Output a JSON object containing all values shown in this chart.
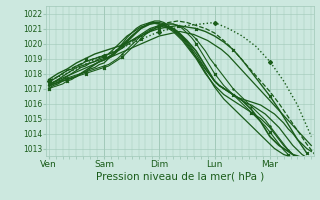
{
  "bg_color": "#cce8df",
  "grid_color": "#a0c8b8",
  "line_color": "#1a5c1a",
  "xlabel": "Pression niveau de la mer( hPa )",
  "xlabel_fontsize": 7.5,
  "ytick_labels": [
    1013,
    1014,
    1015,
    1016,
    1017,
    1018,
    1019,
    1020,
    1021,
    1022
  ],
  "ylim": [
    1012.5,
    1022.5
  ],
  "xtick_labels": [
    "Ven",
    "Sam",
    "Dim",
    "Lun",
    "Mar"
  ],
  "xtick_positions": [
    0,
    24,
    48,
    72,
    96
  ],
  "xlim": [
    -1,
    115
  ],
  "series": [
    {
      "x": [
        0,
        1,
        2,
        3,
        4,
        5,
        6,
        7,
        8,
        9,
        10,
        11,
        12,
        13,
        14,
        15,
        16,
        17,
        18,
        19,
        20,
        21,
        22,
        23,
        24,
        26,
        28,
        30,
        32,
        34,
        36,
        38,
        40,
        42,
        44,
        46,
        48,
        50,
        52,
        54,
        56,
        58,
        60,
        62,
        64,
        66,
        68,
        70,
        72,
        74,
        76,
        78,
        80,
        82,
        84,
        86,
        88,
        90,
        92,
        94,
        96,
        98,
        100,
        102,
        104,
        106,
        108,
        110,
        112,
        114
      ],
      "y": [
        1017.2,
        1017.25,
        1017.3,
        1017.35,
        1017.4,
        1017.45,
        1017.5,
        1017.55,
        1017.6,
        1017.65,
        1017.7,
        1017.75,
        1017.8,
        1017.9,
        1018.0,
        1018.1,
        1018.2,
        1018.3,
        1018.4,
        1018.5,
        1018.6,
        1018.7,
        1018.8,
        1018.85,
        1018.9,
        1019.1,
        1019.3,
        1019.6,
        1019.9,
        1020.2,
        1020.5,
        1020.75,
        1021.0,
        1021.15,
        1021.3,
        1021.35,
        1021.3,
        1021.2,
        1021.1,
        1021.0,
        1020.8,
        1020.5,
        1020.2,
        1019.85,
        1019.5,
        1019.0,
        1018.5,
        1018.0,
        1017.5,
        1017.2,
        1017.0,
        1016.8,
        1016.6,
        1016.4,
        1016.2,
        1015.9,
        1015.6,
        1015.2,
        1014.8,
        1014.3,
        1013.8,
        1013.5,
        1013.2,
        1013.0,
        1012.8,
        1012.6,
        1012.5,
        1012.4,
        1012.35,
        1012.3
      ],
      "style": "solid",
      "marker": null,
      "lw": 1.2
    },
    {
      "x": [
        0,
        2,
        4,
        6,
        8,
        10,
        12,
        14,
        16,
        18,
        20,
        22,
        24,
        26,
        28,
        30,
        32,
        34,
        36,
        38,
        40,
        42,
        44,
        46,
        48,
        50,
        52,
        54,
        56,
        58,
        60,
        62,
        64,
        66,
        68,
        70,
        72,
        74,
        76,
        78,
        80,
        82,
        84,
        86,
        88,
        90,
        92,
        94,
        96,
        98,
        100,
        102,
        104,
        106,
        108,
        110,
        112,
        114
      ],
      "y": [
        1017.0,
        1017.2,
        1017.3,
        1017.5,
        1017.6,
        1017.7,
        1017.8,
        1018.0,
        1018.1,
        1018.3,
        1018.4,
        1018.6,
        1018.7,
        1019.0,
        1019.2,
        1019.5,
        1019.7,
        1020.0,
        1020.2,
        1020.4,
        1020.6,
        1020.8,
        1021.0,
        1021.1,
        1021.2,
        1021.1,
        1021.0,
        1020.9,
        1020.7,
        1020.4,
        1020.1,
        1019.7,
        1019.3,
        1018.8,
        1018.3,
        1017.9,
        1017.5,
        1017.2,
        1017.0,
        1016.8,
        1016.6,
        1016.4,
        1016.3,
        1016.2,
        1016.1,
        1016.0,
        1015.9,
        1015.7,
        1015.5,
        1015.3,
        1015.0,
        1014.7,
        1014.3,
        1014.0,
        1013.6,
        1013.3,
        1013.0,
        1012.8
      ],
      "style": "solid",
      "marker": null,
      "lw": 0.9
    },
    {
      "x": [
        0,
        2,
        4,
        6,
        8,
        10,
        12,
        14,
        16,
        18,
        20,
        22,
        24,
        26,
        28,
        30,
        32,
        34,
        36,
        38,
        40,
        42,
        44,
        46,
        48,
        50,
        52,
        54,
        56,
        58,
        60,
        62,
        64,
        66,
        68,
        70,
        72,
        74,
        76,
        78,
        80,
        82,
        84,
        86,
        88,
        90,
        92,
        94,
        96,
        98,
        100,
        102,
        104,
        106,
        108,
        110,
        112,
        114
      ],
      "y": [
        1017.1,
        1017.3,
        1017.4,
        1017.6,
        1017.8,
        1018.0,
        1018.2,
        1018.4,
        1018.5,
        1018.7,
        1018.8,
        1019.0,
        1019.1,
        1019.3,
        1019.6,
        1019.9,
        1020.2,
        1020.5,
        1020.7,
        1020.9,
        1021.1,
        1021.2,
        1021.3,
        1021.4,
        1021.4,
        1021.3,
        1021.1,
        1020.9,
        1020.6,
        1020.3,
        1019.9,
        1019.5,
        1019.1,
        1018.7,
        1018.3,
        1017.9,
        1017.5,
        1017.2,
        1017.0,
        1016.8,
        1016.6,
        1016.4,
        1016.2,
        1016.0,
        1015.9,
        1015.7,
        1015.5,
        1015.3,
        1015.0,
        1014.7,
        1014.4,
        1014.0,
        1013.6,
        1013.2,
        1012.9,
        1012.6,
        1012.4,
        1012.2
      ],
      "style": "solid",
      "marker": null,
      "lw": 0.9
    },
    {
      "x": [
        0,
        2,
        4,
        6,
        8,
        10,
        12,
        14,
        16,
        18,
        20,
        22,
        24,
        26,
        28,
        30,
        32,
        34,
        36,
        38,
        40,
        42,
        44,
        46,
        48,
        50,
        52,
        54,
        56,
        58,
        60,
        62,
        64,
        66,
        68,
        70,
        72,
        74,
        76,
        78,
        80,
        82,
        84,
        86,
        88,
        90,
        92,
        94,
        96,
        98,
        100,
        102,
        104,
        106,
        108,
        110,
        112,
        114
      ],
      "y": [
        1017.2,
        1017.4,
        1017.6,
        1017.8,
        1018.0,
        1018.2,
        1018.4,
        1018.5,
        1018.6,
        1018.7,
        1018.8,
        1018.9,
        1019.0,
        1019.1,
        1019.3,
        1019.6,
        1020.0,
        1020.4,
        1020.7,
        1021.0,
        1021.2,
        1021.3,
        1021.4,
        1021.4,
        1021.3,
        1021.2,
        1021.0,
        1020.8,
        1020.5,
        1020.2,
        1019.8,
        1019.4,
        1019.0,
        1018.5,
        1018.0,
        1017.6,
        1017.2,
        1016.9,
        1016.6,
        1016.4,
        1016.2,
        1016.0,
        1015.8,
        1015.6,
        1015.4,
        1015.2,
        1015.0,
        1014.7,
        1014.4,
        1014.0,
        1013.6,
        1013.2,
        1012.9,
        1012.6,
        1012.3,
        1012.1,
        1012.0,
        1011.9
      ],
      "style": "solid",
      "marker": null,
      "lw": 0.9
    },
    {
      "x": [
        0,
        4,
        8,
        12,
        16,
        20,
        24,
        28,
        32,
        36,
        40,
        44,
        48,
        52,
        56,
        60,
        64,
        68,
        72,
        76,
        80,
        84,
        88,
        92,
        96,
        100,
        104,
        108,
        112,
        116
      ],
      "y": [
        1017.5,
        1017.8,
        1018.2,
        1018.5,
        1018.8,
        1019.0,
        1019.2,
        1019.4,
        1019.7,
        1020.1,
        1020.5,
        1020.9,
        1021.2,
        1021.4,
        1021.5,
        1021.4,
        1021.2,
        1021.0,
        1020.7,
        1020.2,
        1019.6,
        1018.9,
        1018.2,
        1017.5,
        1016.8,
        1016.0,
        1015.1,
        1014.2,
        1013.3,
        1012.5
      ],
      "style": "dashed",
      "marker": null,
      "lw": 0.9
    },
    {
      "x": [
        0,
        3,
        6,
        9,
        12,
        15,
        18,
        21,
        24,
        27,
        30,
        33,
        36,
        39,
        42,
        45,
        48,
        51,
        54,
        57,
        60,
        63,
        66,
        69,
        72,
        75,
        78,
        81,
        84,
        87,
        90,
        93,
        96,
        99,
        102,
        105,
        108,
        111,
        114
      ],
      "y": [
        1017.3,
        1017.5,
        1017.7,
        1017.9,
        1018.1,
        1018.3,
        1018.5,
        1018.7,
        1018.9,
        1019.1,
        1019.3,
        1019.5,
        1019.7,
        1019.9,
        1020.1,
        1020.3,
        1020.5,
        1020.6,
        1020.7,
        1020.8,
        1020.7,
        1020.6,
        1020.4,
        1020.2,
        1019.9,
        1019.6,
        1019.2,
        1018.7,
        1018.2,
        1017.7,
        1017.2,
        1016.7,
        1016.2,
        1015.7,
        1015.2,
        1014.7,
        1014.2,
        1013.7,
        1013.2
      ],
      "style": "solid",
      "marker": null,
      "lw": 0.9
    },
    {
      "x": [
        0,
        2,
        4,
        6,
        8,
        10,
        12,
        14,
        16,
        18,
        20,
        22,
        24,
        26,
        28,
        30,
        32,
        34,
        36,
        38,
        40,
        42,
        44,
        46,
        48,
        50,
        52,
        54,
        56,
        58,
        60,
        62,
        64,
        66,
        68,
        70,
        72,
        74,
        76,
        78,
        80,
        82,
        84,
        86,
        88,
        90,
        92,
        94,
        96,
        98,
        100,
        102,
        104,
        106,
        108,
        110,
        112,
        114
      ],
      "y": [
        1017.4,
        1017.6,
        1017.8,
        1018.0,
        1018.2,
        1018.3,
        1018.5,
        1018.6,
        1018.8,
        1018.9,
        1019.0,
        1019.1,
        1019.2,
        1019.3,
        1019.4,
        1019.6,
        1019.8,
        1020.1,
        1020.4,
        1020.7,
        1021.0,
        1021.2,
        1021.4,
        1021.5,
        1021.5,
        1021.4,
        1021.2,
        1021.0,
        1020.7,
        1020.4,
        1020.0,
        1019.6,
        1019.1,
        1018.6,
        1018.1,
        1017.6,
        1017.1,
        1016.7,
        1016.3,
        1016.0,
        1015.7,
        1015.4,
        1015.1,
        1014.8,
        1014.5,
        1014.2,
        1013.9,
        1013.6,
        1013.3,
        1013.0,
        1012.8,
        1012.6,
        1012.5,
        1012.4,
        1012.4,
        1012.4,
        1012.4,
        1012.4
      ],
      "style": "solid",
      "marker": null,
      "lw": 0.9
    },
    {
      "x": [
        0,
        2,
        4,
        6,
        8,
        10,
        12,
        14,
        16,
        18,
        20,
        22,
        24,
        26,
        28,
        30,
        32,
        34,
        36,
        38,
        40,
        42,
        44,
        46,
        48,
        50,
        52,
        54,
        56,
        58,
        60,
        62,
        64,
        66,
        68,
        70,
        72,
        74,
        76,
        78,
        80,
        82,
        84,
        86,
        88,
        90,
        92,
        94,
        96,
        98,
        100,
        102,
        104,
        106,
        108,
        110,
        112,
        114
      ],
      "y": [
        1017.0,
        1017.1,
        1017.2,
        1017.3,
        1017.5,
        1017.6,
        1017.8,
        1017.9,
        1018.0,
        1018.1,
        1018.2,
        1018.3,
        1018.4,
        1018.5,
        1018.7,
        1018.9,
        1019.1,
        1019.4,
        1019.7,
        1020.0,
        1020.3,
        1020.6,
        1020.8,
        1021.0,
        1021.2,
        1021.3,
        1021.3,
        1021.3,
        1021.2,
        1021.0,
        1020.7,
        1020.4,
        1020.0,
        1019.5,
        1019.0,
        1018.5,
        1018.0,
        1017.6,
        1017.2,
        1016.9,
        1016.6,
        1016.3,
        1016.0,
        1015.7,
        1015.4,
        1015.1,
        1014.8,
        1014.5,
        1014.1,
        1013.7,
        1013.3,
        1012.9,
        1012.6,
        1012.3,
        1012.1,
        1012.0,
        1012.0,
        1012.0
      ],
      "style": "solid",
      "marker": "x",
      "lw": 0.8
    },
    {
      "x": [
        0,
        2,
        4,
        6,
        8,
        10,
        12,
        14,
        16,
        18,
        20,
        22,
        24,
        26,
        28,
        30,
        32,
        34,
        36,
        38,
        40,
        42,
        44,
        46,
        48,
        50,
        52,
        54,
        56,
        58,
        60,
        62,
        64,
        66,
        68,
        70,
        72,
        74,
        76,
        78,
        80,
        82,
        84,
        86,
        88,
        90,
        92,
        94,
        96,
        98,
        100,
        102,
        104,
        106,
        108,
        110,
        112,
        114
      ],
      "y": [
        1017.3,
        1017.4,
        1017.5,
        1017.6,
        1017.7,
        1017.8,
        1017.9,
        1018.0,
        1018.1,
        1018.2,
        1018.3,
        1018.4,
        1018.5,
        1018.6,
        1018.8,
        1019.0,
        1019.3,
        1019.6,
        1019.9,
        1020.2,
        1020.5,
        1020.7,
        1020.9,
        1021.0,
        1021.1,
        1021.2,
        1021.3,
        1021.3,
        1021.2,
        1021.1,
        1020.9,
        1020.6,
        1020.3,
        1019.9,
        1019.5,
        1019.0,
        1018.6,
        1018.2,
        1017.8,
        1017.4,
        1017.0,
        1016.7,
        1016.4,
        1016.1,
        1015.8,
        1015.5,
        1015.2,
        1014.9,
        1014.5,
        1014.1,
        1013.7,
        1013.3,
        1012.9,
        1012.6,
        1012.3,
        1012.1,
        1012.0,
        1012.0
      ],
      "style": "solid",
      "marker": "+",
      "lw": 0.8
    },
    {
      "x": [
        0,
        6,
        12,
        18,
        24,
        30,
        36,
        42,
        48,
        54,
        60,
        66,
        72,
        78,
        84,
        90,
        96,
        102,
        108,
        114
      ],
      "y": [
        1017.5,
        1017.9,
        1018.3,
        1018.8,
        1019.2,
        1019.6,
        1020.0,
        1020.4,
        1020.8,
        1021.0,
        1021.2,
        1021.3,
        1021.4,
        1021.0,
        1020.5,
        1019.8,
        1018.8,
        1017.5,
        1015.9,
        1013.8
      ],
      "style": "dotted",
      "marker": "D",
      "lw": 1.0
    },
    {
      "x": [
        0,
        4,
        8,
        12,
        16,
        20,
        24,
        28,
        32,
        36,
        40,
        44,
        48,
        52,
        56,
        60,
        64,
        68,
        72,
        76,
        80,
        84,
        88,
        92,
        96,
        100,
        104,
        108,
        112
      ],
      "y": [
        1017.6,
        1018.0,
        1018.3,
        1018.7,
        1019.0,
        1019.3,
        1019.5,
        1019.7,
        1019.9,
        1020.2,
        1020.5,
        1020.8,
        1021.0,
        1021.1,
        1021.2,
        1021.1,
        1021.0,
        1020.8,
        1020.5,
        1020.1,
        1019.6,
        1018.9,
        1018.1,
        1017.3,
        1016.5,
        1015.6,
        1014.6,
        1013.6,
        1012.7
      ],
      "style": "solid",
      "marker": "x",
      "lw": 1.0
    }
  ]
}
